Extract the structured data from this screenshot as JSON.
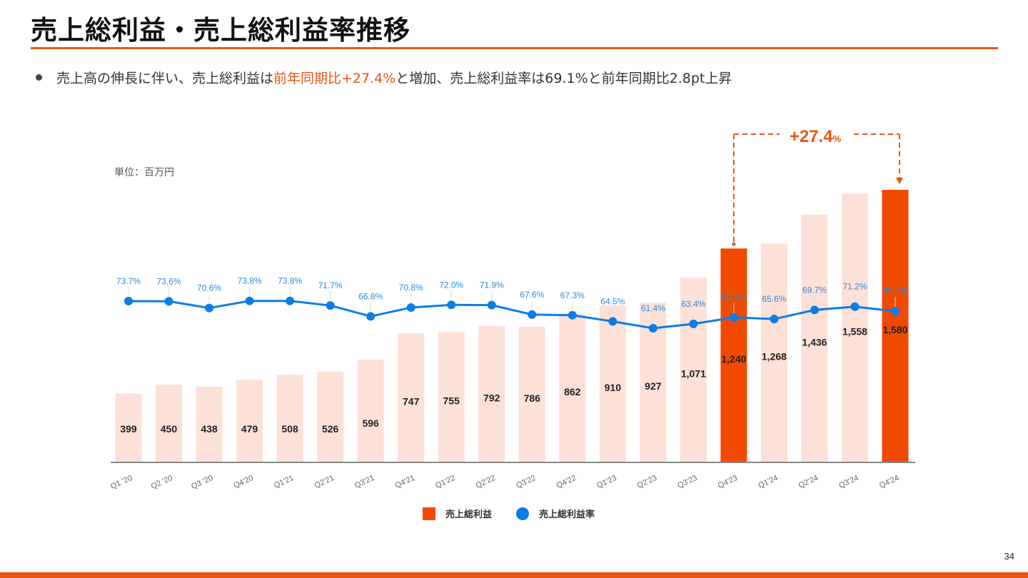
{
  "header": {
    "title": "売上総利益・売上総利益率推移"
  },
  "summary": {
    "part1": "売上高の伸長に伴い、売上総利益は",
    "highlight": "前年同期比+27.4%",
    "part2": "と増加、売上総利益率は69.1%と前年同期比2.8pt上昇"
  },
  "unit_label": "単位：百万円",
  "page_number": "34",
  "colors": {
    "accent": "#ea5514",
    "bar_highlight": "#f04a00",
    "bar_normal": "#fde0d6",
    "line": "#0a7ee6",
    "line_label": "#2a8be0"
  },
  "chart_data": {
    "type": "bar",
    "title": "",
    "xlabel": "",
    "ylabel": "",
    "unit": "百万円",
    "categories": [
      "Q1 '20",
      "Q2 '20",
      "Q3 '20",
      "Q4'20",
      "Q1'21",
      "Q2'21",
      "Q3'21",
      "Q4'21",
      "Q1'22",
      "Q2'22",
      "Q3'22",
      "Q4'22",
      "Q1'23",
      "Q2'23",
      "Q3'23",
      "Q4'23",
      "Q1'24",
      "Q2'24",
      "Q3'24",
      "Q4'24"
    ],
    "series": [
      {
        "name": "売上総利益",
        "type": "bar",
        "axis": "left",
        "values": [
          399,
          450,
          438,
          479,
          508,
          526,
          596,
          747,
          755,
          792,
          786,
          862,
          910,
          927,
          1071,
          1240,
          1268,
          1436,
          1558,
          1580
        ],
        "labels": [
          "399",
          "450",
          "438",
          "479",
          "508",
          "526",
          "596",
          "747",
          "755",
          "792",
          "786",
          "862",
          "910",
          "927",
          "1,071",
          "1,240",
          "1,268",
          "1,436",
          "1,558",
          "1,580"
        ],
        "highlighted": [
          "Q4'23",
          "Q4'24"
        ]
      },
      {
        "name": "売上総利益率",
        "type": "line",
        "axis": "right",
        "unit": "%",
        "values": [
          73.7,
          73.6,
          70.6,
          73.8,
          73.8,
          71.7,
          66.8,
          70.8,
          72.0,
          71.9,
          67.6,
          67.3,
          64.5,
          61.4,
          63.4,
          66.3,
          65.6,
          69.7,
          71.2,
          69.1
        ],
        "labels": [
          "73.7%",
          "73.6%",
          "70.6%",
          "73.8%",
          "73.8%",
          "71.7%",
          "66.8%",
          "70.8%",
          "72.0%",
          "71.9%",
          "67.6%",
          "67.3%",
          "64.5%",
          "61.4%",
          "63.4%",
          "66.3%",
          "65.6%",
          "69.7%",
          "71.2%",
          "69.1%"
        ]
      }
    ],
    "ylim": [
      0,
      1580
    ],
    "grid": false,
    "legend": "bottom-center",
    "legend_entries": [
      "売上総利益",
      "売上総利益率"
    ],
    "annotation": {
      "text": "+27.4",
      "suffix": "%",
      "from": "Q4'23",
      "to": "Q4'24"
    }
  }
}
